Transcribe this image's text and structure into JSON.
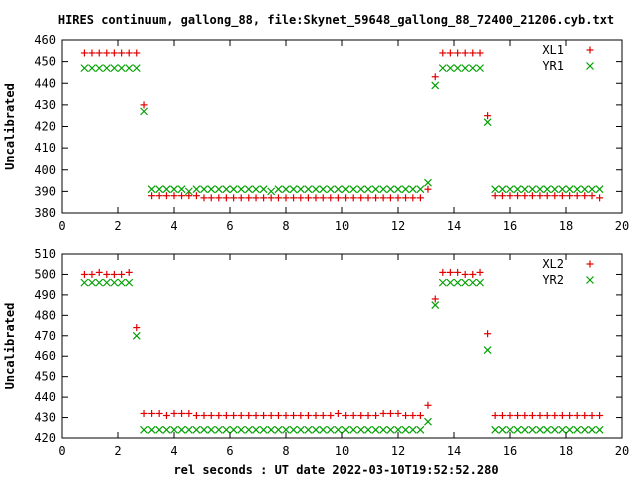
{
  "figure_title": "HIRES continuum, gallong_88, file:Skynet_59648_gallong_88_72400_21206.cyb.txt",
  "xlabel": "rel seconds : UT date 2022-03-10T19:52:52.280",
  "colors": {
    "XL": "#e00000",
    "YR": "#00a000"
  },
  "chart_data": [
    {
      "type": "scatter",
      "title": "HIRES continuum, gallong_88, file:Skynet_59648_gallong_88_72400_21206.cyb.txt",
      "ylabel": "Uncalibrated",
      "xlim": [
        0,
        20
      ],
      "ylim": [
        380,
        460
      ],
      "xticks": [
        0,
        2,
        4,
        6,
        8,
        10,
        12,
        14,
        16,
        18,
        20
      ],
      "yticks": [
        380,
        390,
        400,
        410,
        420,
        430,
        440,
        450,
        460
      ],
      "legend": "top-right",
      "grid": false,
      "series": [
        {
          "name": "XL1",
          "marker": "+",
          "color": "#e00000",
          "x": [
            0.8,
            1.07,
            1.33,
            1.6,
            1.87,
            2.13,
            2.4,
            2.67,
            2.93,
            3.2,
            3.47,
            3.73,
            4.0,
            4.27,
            4.53,
            4.8,
            5.07,
            5.33,
            5.6,
            5.87,
            6.13,
            6.4,
            6.67,
            6.93,
            7.2,
            7.47,
            7.73,
            8.0,
            8.27,
            8.53,
            8.8,
            9.07,
            9.33,
            9.6,
            9.87,
            10.13,
            10.4,
            10.67,
            10.93,
            11.2,
            11.47,
            11.73,
            12.0,
            12.27,
            12.53,
            12.8,
            13.07,
            13.33,
            13.6,
            13.87,
            14.13,
            14.4,
            14.67,
            14.93,
            15.2,
            15.47,
            15.73,
            16.0,
            16.27,
            16.53,
            16.8,
            17.07,
            17.33,
            17.6,
            17.87,
            18.13,
            18.4,
            18.67,
            18.93,
            19.2
          ],
          "y": [
            454,
            454,
            454,
            454,
            454,
            454,
            454,
            454,
            430,
            388,
            388,
            388,
            388,
            388,
            388,
            388,
            387,
            387,
            387,
            387,
            387,
            387,
            387,
            387,
            387,
            387,
            387,
            387,
            387,
            387,
            387,
            387,
            387,
            387,
            387,
            387,
            387,
            387,
            387,
            387,
            387,
            387,
            387,
            387,
            387,
            387,
            391,
            443,
            454,
            454,
            454,
            454,
            454,
            454,
            425,
            388,
            388,
            388,
            388,
            388,
            388,
            388,
            388,
            388,
            388,
            388,
            388,
            388,
            388,
            387
          ]
        },
        {
          "name": "YR1",
          "marker": "x",
          "color": "#00a000",
          "x": [
            0.8,
            1.07,
            1.33,
            1.6,
            1.87,
            2.13,
            2.4,
            2.67,
            2.93,
            3.2,
            3.47,
            3.73,
            4.0,
            4.27,
            4.53,
            4.8,
            5.07,
            5.33,
            5.6,
            5.87,
            6.13,
            6.4,
            6.67,
            6.93,
            7.2,
            7.47,
            7.73,
            8.0,
            8.27,
            8.53,
            8.8,
            9.07,
            9.33,
            9.6,
            9.87,
            10.13,
            10.4,
            10.67,
            10.93,
            11.2,
            11.47,
            11.73,
            12.0,
            12.27,
            12.53,
            12.8,
            13.07,
            13.33,
            13.6,
            13.87,
            14.13,
            14.4,
            14.67,
            14.93,
            15.2,
            15.47,
            15.73,
            16.0,
            16.27,
            16.53,
            16.8,
            17.07,
            17.33,
            17.6,
            17.87,
            18.13,
            18.4,
            18.67,
            18.93,
            19.2
          ],
          "y": [
            447,
            447,
            447,
            447,
            447,
            447,
            447,
            447,
            427,
            391,
            391,
            391,
            391,
            391,
            390,
            391,
            391,
            391,
            391,
            391,
            391,
            391,
            391,
            391,
            391,
            390,
            391,
            391,
            391,
            391,
            391,
            391,
            391,
            391,
            391,
            391,
            391,
            391,
            391,
            391,
            391,
            391,
            391,
            391,
            391,
            391,
            394,
            439,
            447,
            447,
            447,
            447,
            447,
            447,
            422,
            391,
            391,
            391,
            391,
            391,
            391,
            391,
            391,
            391,
            391,
            391,
            391,
            391,
            391,
            391
          ]
        }
      ]
    },
    {
      "type": "scatter",
      "title": "",
      "xlabel": "rel seconds : UT date 2022-03-10T19:52:52.280",
      "ylabel": "Uncalibrated",
      "xlim": [
        0,
        20
      ],
      "ylim": [
        420,
        510
      ],
      "xticks": [
        0,
        2,
        4,
        6,
        8,
        10,
        12,
        14,
        16,
        18,
        20
      ],
      "yticks": [
        420,
        430,
        440,
        450,
        460,
        470,
        480,
        490,
        500,
        510
      ],
      "legend": "top-right",
      "grid": false,
      "series": [
        {
          "name": "XL2",
          "marker": "+",
          "color": "#e00000",
          "x": [
            0.8,
            1.07,
            1.33,
            1.6,
            1.87,
            2.13,
            2.4,
            2.67,
            2.93,
            3.2,
            3.47,
            3.73,
            4.0,
            4.27,
            4.53,
            4.8,
            5.07,
            5.33,
            5.6,
            5.87,
            6.13,
            6.4,
            6.67,
            6.93,
            7.2,
            7.47,
            7.73,
            8.0,
            8.27,
            8.53,
            8.8,
            9.07,
            9.33,
            9.6,
            9.87,
            10.13,
            10.4,
            10.67,
            10.93,
            11.2,
            11.47,
            11.73,
            12.0,
            12.27,
            12.53,
            12.8,
            13.07,
            13.33,
            13.6,
            13.87,
            14.13,
            14.4,
            14.67,
            14.93,
            15.2,
            15.47,
            15.73,
            16.0,
            16.27,
            16.53,
            16.8,
            17.07,
            17.33,
            17.6,
            17.87,
            18.13,
            18.4,
            18.67,
            18.93,
            19.2
          ],
          "y": [
            500,
            500,
            501,
            500,
            500,
            500,
            501,
            474,
            432,
            432,
            432,
            431,
            432,
            432,
            432,
            431,
            431,
            431,
            431,
            431,
            431,
            431,
            431,
            431,
            431,
            431,
            431,
            431,
            431,
            431,
            431,
            431,
            431,
            431,
            432,
            431,
            431,
            431,
            431,
            431,
            432,
            432,
            432,
            431,
            431,
            431,
            436,
            488,
            501,
            501,
            501,
            500,
            500,
            501,
            471,
            431,
            431,
            431,
            431,
            431,
            431,
            431,
            431,
            431,
            431,
            431,
            431,
            431,
            431,
            431
          ]
        },
        {
          "name": "YR2",
          "marker": "x",
          "color": "#00a000",
          "x": [
            0.8,
            1.07,
            1.33,
            1.6,
            1.87,
            2.13,
            2.4,
            2.67,
            2.93,
            3.2,
            3.47,
            3.73,
            4.0,
            4.27,
            4.53,
            4.8,
            5.07,
            5.33,
            5.6,
            5.87,
            6.13,
            6.4,
            6.67,
            6.93,
            7.2,
            7.47,
            7.73,
            8.0,
            8.27,
            8.53,
            8.8,
            9.07,
            9.33,
            9.6,
            9.87,
            10.13,
            10.4,
            10.67,
            10.93,
            11.2,
            11.47,
            11.73,
            12.0,
            12.27,
            12.53,
            12.8,
            13.07,
            13.33,
            13.6,
            13.87,
            14.13,
            14.4,
            14.67,
            14.93,
            15.2,
            15.47,
            15.73,
            16.0,
            16.27,
            16.53,
            16.8,
            17.07,
            17.33,
            17.6,
            17.87,
            18.13,
            18.4,
            18.67,
            18.93,
            19.2
          ],
          "y": [
            496,
            496,
            496,
            496,
            496,
            496,
            496,
            470,
            424,
            424,
            424,
            424,
            424,
            424,
            424,
            424,
            424,
            424,
            424,
            424,
            424,
            424,
            424,
            424,
            424,
            424,
            424,
            424,
            424,
            424,
            424,
            424,
            424,
            424,
            424,
            424,
            424,
            424,
            424,
            424,
            424,
            424,
            424,
            424,
            424,
            424,
            428,
            485,
            496,
            496,
            496,
            496,
            496,
            496,
            463,
            424,
            424,
            424,
            424,
            424,
            424,
            424,
            424,
            424,
            424,
            424,
            424,
            424,
            424,
            424
          ]
        }
      ]
    }
  ]
}
